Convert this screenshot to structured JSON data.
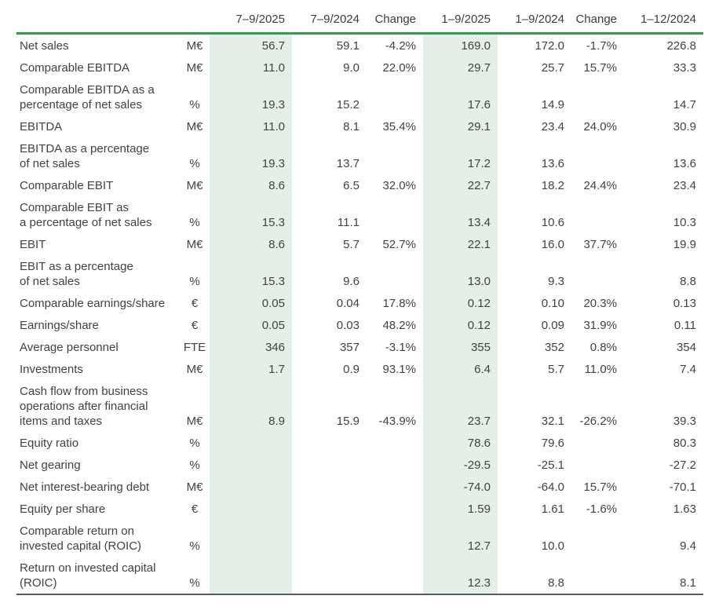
{
  "colors": {
    "accent_green": "#2f9c47",
    "highlight_green": "#e3efe7",
    "text": "#424242",
    "bottom_rule": "#595a5c"
  },
  "table": {
    "columns": [
      "",
      "",
      "7–9/2025",
      "7–9/2024",
      "Change",
      "1–9/2025",
      "1–9/2024",
      "Change",
      "1–12/2024"
    ],
    "highlighted_columns": [
      "7–9/2025",
      "1–9/2025"
    ],
    "highlighted_value_indices": [
      0,
      3
    ],
    "rows": [
      {
        "label": "Net sales",
        "unit": "M€",
        "values": [
          "56.7",
          "59.1",
          "-4.2%",
          "169.0",
          "172.0",
          "-1.7%",
          "226.8"
        ]
      },
      {
        "label": "Comparable EBITDA",
        "unit": "M€",
        "values": [
          "11.0",
          "9.0",
          "22.0%",
          "29.7",
          "25.7",
          "15.7%",
          "33.3"
        ]
      },
      {
        "label": "Comparable EBITDA as a\npercentage of net sales",
        "unit": "%",
        "values": [
          "19.3",
          "15.2",
          "",
          "17.6",
          "14.9",
          "",
          "14.7"
        ]
      },
      {
        "label": "EBITDA",
        "unit": "M€",
        "values": [
          "11.0",
          "8.1",
          "35.4%",
          "29.1",
          "23.4",
          "24.0%",
          "30.9"
        ]
      },
      {
        "label": "EBITDA as a percentage\nof net sales",
        "unit": "%",
        "values": [
          "19.3",
          "13.7",
          "",
          "17.2",
          "13.6",
          "",
          "13.6"
        ]
      },
      {
        "label": "Comparable EBIT",
        "unit": "M€",
        "values": [
          "8.6",
          "6.5",
          "32.0%",
          "22.7",
          "18.2",
          "24.4%",
          "23.4"
        ]
      },
      {
        "label": "Comparable EBIT as\na percentage of net sales",
        "unit": "%",
        "values": [
          "15.3",
          "11.1",
          "",
          "13.4",
          "10.6",
          "",
          "10.3"
        ]
      },
      {
        "label": "EBIT",
        "unit": "M€",
        "values": [
          "8.6",
          "5.7",
          "52.7%",
          "22.1",
          "16.0",
          "37.7%",
          "19.9"
        ]
      },
      {
        "label": "EBIT as a percentage\nof net sales",
        "unit": "%",
        "values": [
          "15.3",
          "9.6",
          "",
          "13.0",
          "9.3",
          "",
          "8.8"
        ]
      },
      {
        "label": "Comparable earnings/share",
        "unit": "€",
        "values": [
          "0.05",
          "0.04",
          "17.8%",
          "0.12",
          "0.10",
          "20.3%",
          "0.13"
        ]
      },
      {
        "label": "Earnings/share",
        "unit": "€",
        "values": [
          "0.05",
          "0.03",
          "48.2%",
          "0.12",
          "0.09",
          "31.9%",
          "0.11"
        ]
      },
      {
        "label": "Average personnel",
        "unit": "FTE",
        "values": [
          "346",
          "357",
          "-3.1%",
          "355",
          "352",
          "0.8%",
          "354"
        ]
      },
      {
        "label": "Investments",
        "unit": "M€",
        "values": [
          "1.7",
          "0.9",
          "93.1%",
          "6.4",
          "5.7",
          "11.0%",
          "7.4"
        ]
      },
      {
        "label": "Cash flow from business\noperations after financial\nitems and taxes",
        "unit": "M€",
        "values": [
          "8.9",
          "15.9",
          "-43.9%",
          "23.7",
          "32.1",
          "-26.2%",
          "39.3"
        ]
      },
      {
        "label": "Equity ratio",
        "unit": "%",
        "values": [
          "",
          "",
          "",
          "78.6",
          "79.6",
          "",
          "80.3"
        ]
      },
      {
        "label": "Net gearing",
        "unit": "%",
        "values": [
          "",
          "",
          "",
          "-29.5",
          "-25.1",
          "",
          "-27.2"
        ]
      },
      {
        "label": "Net interest-bearing debt",
        "unit": "M€",
        "values": [
          "",
          "",
          "",
          "-74.0",
          "-64.0",
          "15.7%",
          "-70.1"
        ]
      },
      {
        "label": "Equity per share",
        "unit": "€",
        "values": [
          "",
          "",
          "",
          "1.59",
          "1.61",
          "-1.6%",
          "1.63"
        ]
      },
      {
        "label": "Comparable return on\ninvested capital (ROIC)",
        "unit": "%",
        "values": [
          "",
          "",
          "",
          "12.7",
          "10.0",
          "",
          "9.4"
        ]
      },
      {
        "label": "Return on invested capital\n(ROIC)",
        "unit": "%",
        "values": [
          "",
          "",
          "",
          "12.3",
          "8.8",
          "",
          "8.1"
        ]
      }
    ]
  }
}
